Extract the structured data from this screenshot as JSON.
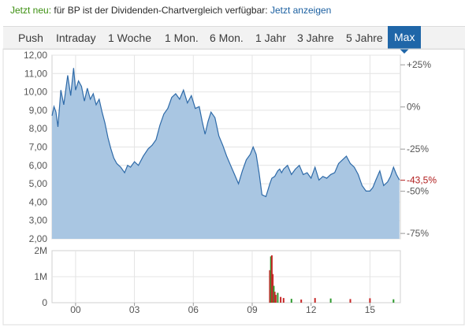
{
  "notice": {
    "lead": "Jetzt neu:",
    "text": " für BP ist der Dividenden-Chartvergleich verfügbar: ",
    "link": "Jetzt anzeigen"
  },
  "tabs": [
    {
      "label": "Push",
      "active": false
    },
    {
      "label": "Intraday",
      "active": false
    },
    {
      "label": "1 Woche",
      "active": false
    },
    {
      "label": "1 Mon.",
      "active": false
    },
    {
      "label": "6 Mon.",
      "active": false
    },
    {
      "label": "1 Jahr",
      "active": false
    },
    {
      "label": "3 Jahre",
      "active": false
    },
    {
      "label": "5 Jahre",
      "active": false
    },
    {
      "label": "Max",
      "active": true
    }
  ],
  "colors": {
    "accent": "#1f66a8",
    "area_fill": "#a9c6e2",
    "line": "#2e6aa8",
    "current_marker": "#b01c1c",
    "volume_up": "#2f9a2f",
    "volume_down": "#c62828"
  },
  "chart_data": [
    {
      "type": "area",
      "title": "",
      "xlabel": "",
      "ylabel": "",
      "y_ticks": [
        "12,00",
        "11,00",
        "10,00",
        "9,00",
        "8,00",
        "7,00",
        "6,00",
        "5,00",
        "4,00",
        "3,00",
        "2,00"
      ],
      "ylim": [
        2,
        12
      ],
      "right_ticks": [
        "+25%",
        "0%",
        "-25%",
        "-50%",
        "-75%"
      ],
      "right_tick_values": [
        11.475,
        9.18,
        6.885,
        4.59,
        2.295
      ],
      "current_label": "-43,5%",
      "current_value": 5.19,
      "x_ticks": [
        "00",
        "03",
        "06",
        "09",
        "12",
        "15"
      ],
      "x_tick_values": [
        2000,
        2003,
        2006,
        2009,
        2012,
        2015
      ],
      "xlim": [
        1998.8,
        2016.55
      ],
      "grid": true,
      "series": [
        {
          "x": [
            1998.8,
            1998.9,
            1999.0,
            1999.1,
            1999.25,
            1999.4,
            1999.6,
            1999.75,
            1999.9,
            2000.0,
            2000.15,
            2000.3,
            2000.45,
            2000.6,
            2000.75,
            2000.9,
            2001.05,
            2001.2,
            2001.35,
            2001.5,
            2001.65,
            2001.8,
            2001.95,
            2002.1,
            2002.3,
            2002.5,
            2002.65,
            2002.8,
            2003.0,
            2003.2,
            2003.45,
            2003.7,
            2003.9,
            2004.1,
            2004.3,
            2004.5,
            2004.7,
            2004.9,
            2005.1,
            2005.3,
            2005.5,
            2005.7,
            2005.9,
            2006.1,
            2006.3,
            2006.45,
            2006.6,
            2006.75,
            2006.9,
            2007.1,
            2007.3,
            2007.5,
            2007.7,
            2007.9,
            2008.1,
            2008.3,
            2008.5,
            2008.7,
            2008.9,
            2009.05,
            2009.2,
            2009.35,
            2009.5,
            2009.7,
            2009.9,
            2010.0,
            2010.15,
            2010.3,
            2010.4,
            2010.5,
            2010.6,
            2010.8,
            2011.0,
            2011.2,
            2011.4,
            2011.6,
            2011.8,
            2012.0,
            2012.2,
            2012.4,
            2012.6,
            2012.8,
            2013.0,
            2013.2,
            2013.4,
            2013.6,
            2013.8,
            2014.0,
            2014.2,
            2014.4,
            2014.6,
            2014.8,
            2015.0,
            2015.15,
            2015.3,
            2015.5,
            2015.7,
            2015.9,
            2016.05,
            2016.2,
            2016.35,
            2016.5
          ],
          "y": [
            8.7,
            9.2,
            8.9,
            8.1,
            10.1,
            9.3,
            10.9,
            9.8,
            11.3,
            10.1,
            10.6,
            10.3,
            9.5,
            10.2,
            9.6,
            9.9,
            9.3,
            9.6,
            8.9,
            8.3,
            7.5,
            6.9,
            6.4,
            6.1,
            5.9,
            5.6,
            6.0,
            5.9,
            6.2,
            6.0,
            6.5,
            6.9,
            7.1,
            7.4,
            8.2,
            8.8,
            9.1,
            9.7,
            9.9,
            9.6,
            10.1,
            9.4,
            9.8,
            9.1,
            9.2,
            8.4,
            7.7,
            8.4,
            8.9,
            8.6,
            7.6,
            7.1,
            6.5,
            6.0,
            5.5,
            5.0,
            5.7,
            6.3,
            6.6,
            7.0,
            6.6,
            5.6,
            4.4,
            4.3,
            5.0,
            5.3,
            5.4,
            5.7,
            5.8,
            5.6,
            5.8,
            6.0,
            5.5,
            5.8,
            6.0,
            5.5,
            5.6,
            5.3,
            5.9,
            5.2,
            5.4,
            5.3,
            5.5,
            5.6,
            6.1,
            6.3,
            6.5,
            6.1,
            5.9,
            5.5,
            4.9,
            4.6,
            4.6,
            4.8,
            5.2,
            5.7,
            4.9,
            5.1,
            5.4,
            5.9,
            5.5,
            5.2
          ]
        }
      ]
    },
    {
      "type": "bar",
      "title": "",
      "xlabel": "",
      "ylabel": "",
      "y_ticks": [
        "2M",
        "1M",
        "0"
      ],
      "ylim": [
        0,
        2000000
      ],
      "x": [
        2009.9,
        2009.95,
        2010.0,
        2010.05,
        2010.1,
        2010.15,
        2010.2,
        2010.3,
        2010.45,
        2010.6,
        2011.0,
        2011.5,
        2012.2,
        2013.0,
        2014.0,
        2015.0,
        2016.2
      ],
      "values": [
        1250000,
        1780000,
        1820000,
        1100000,
        650000,
        420000,
        300000,
        380000,
        220000,
        180000,
        150000,
        120000,
        180000,
        160000,
        140000,
        170000,
        130000
      ]
    }
  ]
}
